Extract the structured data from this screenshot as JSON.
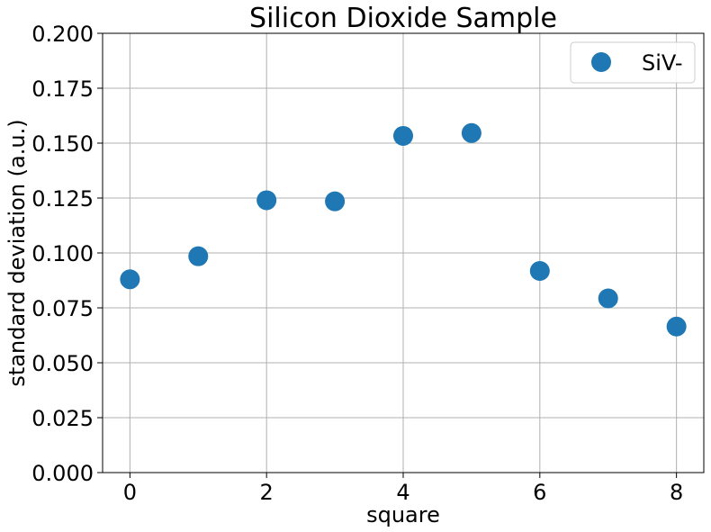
{
  "chart_data": {
    "type": "scatter",
    "title": "Silicon Dioxide Sample",
    "xlabel": "square",
    "ylabel": "standard deviation (a.u.)",
    "xlim": [
      -0.4,
      8.4
    ],
    "ylim": [
      0,
      0.2
    ],
    "xticks": [
      0,
      2,
      4,
      6,
      8
    ],
    "xtick_labels": [
      "0",
      "2",
      "4",
      "6",
      "8"
    ],
    "yticks": [
      0,
      0.025,
      0.05,
      0.075,
      0.1,
      0.125,
      0.15,
      0.175,
      0.2
    ],
    "ytick_labels": [
      "0.000",
      "0.025",
      "0.050",
      "0.075",
      "0.100",
      "0.125",
      "0.150",
      "0.175",
      "0.200"
    ],
    "grid": true,
    "legend_position": "top-right",
    "series": [
      {
        "name": "SiV-",
        "color": "#1f77b4",
        "marker": "circle",
        "x": [
          0,
          1,
          2,
          3,
          4,
          5,
          6,
          7,
          8
        ],
        "y": [
          0.088,
          0.0985,
          0.124,
          0.1235,
          0.1533,
          0.1546,
          0.0918,
          0.0793,
          0.0665
        ]
      }
    ]
  }
}
